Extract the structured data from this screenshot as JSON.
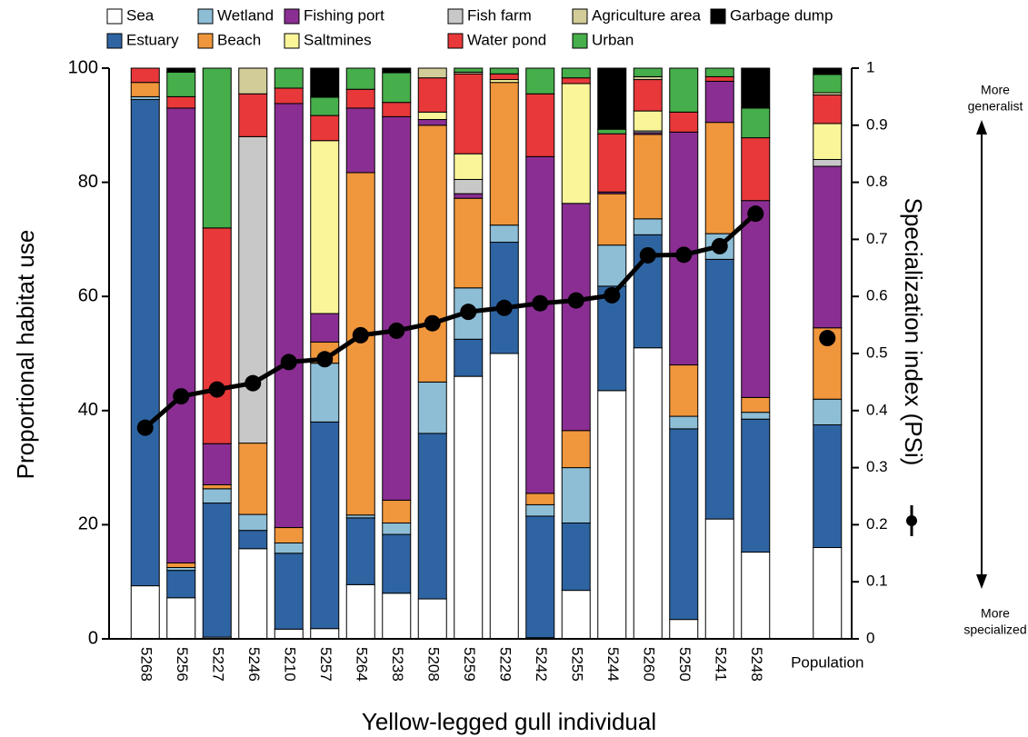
{
  "chart_data": {
    "type": "bar",
    "stacked": true,
    "x_label": "Yellow-legged gull individual",
    "y_label": "Proportional habitat use",
    "y2_label": "Specialization index (PSi)",
    "top_annotation": [
      "More",
      "generalist"
    ],
    "bottom_annotation": [
      "More",
      "specialized"
    ],
    "categories": [
      "5268",
      "5256",
      "5227",
      "5246",
      "5210",
      "5257",
      "5264",
      "5238",
      "5208",
      "5259",
      "5229",
      "5242",
      "5255",
      "5244",
      "5260",
      "5250",
      "5241",
      "5248",
      null,
      "Population"
    ],
    "ylim": [
      0,
      100
    ],
    "yticks": [
      0,
      20,
      40,
      60,
      80,
      100
    ],
    "y2lim": [
      0,
      1
    ],
    "y2ticks": [
      0,
      0.1,
      0.2,
      0.3,
      0.4,
      0.5,
      0.6,
      0.7,
      0.8,
      0.9,
      1
    ],
    "series": [
      {
        "name": "Sea",
        "color": "#ffffff",
        "values": [
          9.3,
          7.2,
          0.3,
          15.8,
          1.7,
          1.8,
          9.5,
          8,
          7,
          46,
          50,
          0.2,
          8.5,
          43.5,
          51,
          3.4,
          21,
          15.2,
          null,
          16
        ]
      },
      {
        "name": "Estuary",
        "color": "#2f64a2",
        "values": [
          85.2,
          4.8,
          23.5,
          3.2,
          13.3,
          36.2,
          11.7,
          10.3,
          29,
          6.5,
          19.5,
          21.3,
          11.8,
          18.3,
          19.8,
          33.4,
          45.5,
          23.3,
          null,
          21.5
        ]
      },
      {
        "name": "Wetland",
        "color": "#8dbed6",
        "values": [
          0.5,
          0.5,
          2.5,
          2.8,
          1.8,
          10.3,
          0.5,
          2,
          9,
          9,
          3,
          2,
          9.7,
          7.2,
          2.8,
          2.2,
          4.5,
          1.2,
          null,
          4.5
        ]
      },
      {
        "name": "Beach",
        "color": "#f0963c",
        "values": [
          2.5,
          0.8,
          0.7,
          12.5,
          2.7,
          3.7,
          60,
          4,
          45,
          15.7,
          25,
          2,
          6.5,
          9,
          14.8,
          9,
          19.5,
          2.6,
          null,
          12.5
        ]
      },
      {
        "name": "Fishing port",
        "color": "#8b2e93",
        "values": [
          0,
          79.7,
          7.2,
          0,
          74.3,
          5,
          11.3,
          67.2,
          1,
          0.8,
          0,
          59,
          39.8,
          0.3,
          0.3,
          40.8,
          7.2,
          34.5,
          null,
          28.3
        ]
      },
      {
        "name": "Fish farm",
        "color": "#c8c8c8",
        "values": [
          0,
          0,
          0,
          53.7,
          0,
          0,
          0,
          0,
          0,
          2.5,
          0,
          0,
          0,
          0,
          0.3,
          0,
          0,
          0,
          null,
          1.2
        ]
      },
      {
        "name": "Saltmines",
        "color": "#fbf59a",
        "values": [
          0,
          0,
          0,
          0,
          0,
          30.3,
          0,
          0,
          1.3,
          4.5,
          0.5,
          0,
          21,
          0,
          3.5,
          0,
          0,
          0,
          null,
          6.3
        ]
      },
      {
        "name": "Water pond",
        "color": "#e8383a",
        "values": [
          2.5,
          2,
          37.8,
          7.5,
          2.7,
          4.4,
          3.3,
          2.5,
          6,
          14,
          1,
          11,
          1,
          10.2,
          5.5,
          3.5,
          0.8,
          11,
          null,
          5
        ]
      },
      {
        "name": "Agriculture area",
        "color": "#d2cc98",
        "values": [
          0,
          0,
          0,
          4.5,
          0,
          0,
          0,
          0,
          1.7,
          0.3,
          0,
          0,
          0,
          0,
          0.5,
          0,
          0,
          0,
          null,
          0.4
        ]
      },
      {
        "name": "Urban",
        "color": "#46ae4a",
        "values": [
          0,
          4.3,
          28,
          0,
          3.5,
          3.2,
          3.7,
          5.2,
          0,
          0.7,
          1,
          4.5,
          1.7,
          0.8,
          1.5,
          7.7,
          1.5,
          5.2,
          null,
          3.2
        ]
      },
      {
        "name": "Garbage dump",
        "color": "#000000",
        "values": [
          0,
          0.7,
          0,
          0,
          0,
          5.1,
          0,
          0.8,
          0,
          0,
          0,
          0,
          0,
          10.7,
          0,
          0,
          0,
          7,
          null,
          1.1
        ]
      }
    ],
    "line_series": {
      "axis": "y2",
      "color": "#000000",
      "values": [
        0.37,
        0.425,
        0.437,
        0.448,
        0.485,
        0.49,
        0.532,
        0.54,
        0.553,
        0.573,
        0.58,
        0.588,
        0.593,
        0.602,
        0.672,
        0.673,
        0.688,
        0.745,
        null,
        0.527
      ]
    }
  }
}
